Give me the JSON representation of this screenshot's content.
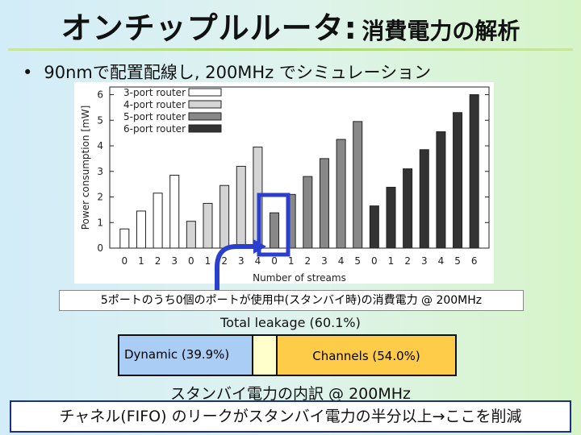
{
  "slide": {
    "title_main": "オンチップルルータ:",
    "title_sub": "消費電力の解析",
    "bullet": "90nmで配置配線し, 200MHz でシミュレーション",
    "callout": "5ポートのうち0個のポートが使用中(スタンバイ時)の消費電力 @ 200MHz",
    "leakage_label": "Total leakage (60.1%)",
    "seg_dynamic": "Dynamic (39.9%)",
    "seg_channels": "Channels (54.0%)",
    "sub_caption": "スタンバイ電力の内訳 @ 200MHz",
    "conclusion": "チャネル(FIFO) のリークがスタンバイ電力の半分以上→ここを削減",
    "colors": {
      "highlight": "#2b3fcf",
      "title_rule": "#a8d86a",
      "dynamic": "#a9cdf4",
      "channels": "#ffcc4a",
      "other_leak": "#ffffcc"
    }
  },
  "chart_data": {
    "type": "bar",
    "xlabel": "Number of streams",
    "ylabel": "Power consumption [mW]",
    "ylim": [
      0,
      6.3
    ],
    "yticks": [
      0,
      1,
      2,
      3,
      4,
      5,
      6
    ],
    "legend_position": "top-left",
    "groups": [
      {
        "name": "3-port router",
        "fill": "#ffffff",
        "categories": [
          "0",
          "1",
          "2",
          "3"
        ],
        "values": [
          0.75,
          1.45,
          2.15,
          2.85
        ]
      },
      {
        "name": "4-port router",
        "fill": "#d4d4d4",
        "categories": [
          "0",
          "1",
          "2",
          "3",
          "4"
        ],
        "values": [
          1.05,
          1.75,
          2.45,
          3.2,
          3.95
        ]
      },
      {
        "name": "5-port router",
        "fill": "#888888",
        "categories": [
          "0",
          "1",
          "2",
          "3",
          "4",
          "5"
        ],
        "values": [
          1.38,
          2.1,
          2.8,
          3.5,
          4.25,
          4.95
        ]
      },
      {
        "name": "6-port router",
        "fill": "#333333",
        "categories": [
          "0",
          "1",
          "2",
          "3",
          "4",
          "5",
          "6"
        ],
        "values": [
          1.65,
          2.38,
          3.1,
          3.85,
          4.55,
          5.3,
          6.0
        ]
      }
    ],
    "highlight": {
      "group": 2,
      "index": 0
    }
  }
}
